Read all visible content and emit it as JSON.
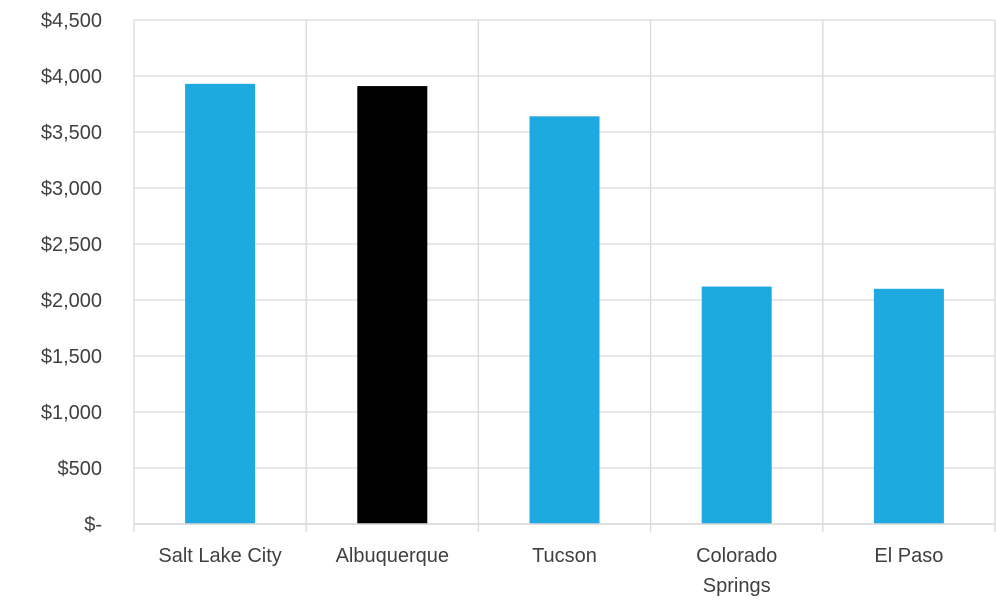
{
  "chart_data": {
    "type": "bar",
    "categories": [
      "Salt Lake City",
      "Albuquerque",
      "Tucson",
      "Colorado Springs",
      "El Paso"
    ],
    "category_lines": [
      [
        "Salt Lake City"
      ],
      [
        "Albuquerque"
      ],
      [
        "Tucson"
      ],
      [
        "Colorado",
        "Springs"
      ],
      [
        "El Paso"
      ]
    ],
    "values": [
      3930,
      3910,
      3640,
      2120,
      2100
    ],
    "bar_colors": [
      "#1EA9E1",
      "#000000",
      "#1EA9E1",
      "#1EA9E1",
      "#1EA9E1"
    ],
    "ylim": [
      0,
      4500
    ],
    "yticks": [
      0,
      500,
      1000,
      1500,
      2000,
      2500,
      3000,
      3500,
      4000,
      4500
    ],
    "ytick_labels": [
      "$-",
      "$500",
      "$1,000",
      "$1,500",
      "$2,000",
      "$2,500",
      "$3,000",
      "$3,500",
      "$4,000",
      "$4,500"
    ],
    "grid": true,
    "gridline_color": "#D9D9D9",
    "title": "",
    "xlabel": "",
    "ylabel": ""
  }
}
